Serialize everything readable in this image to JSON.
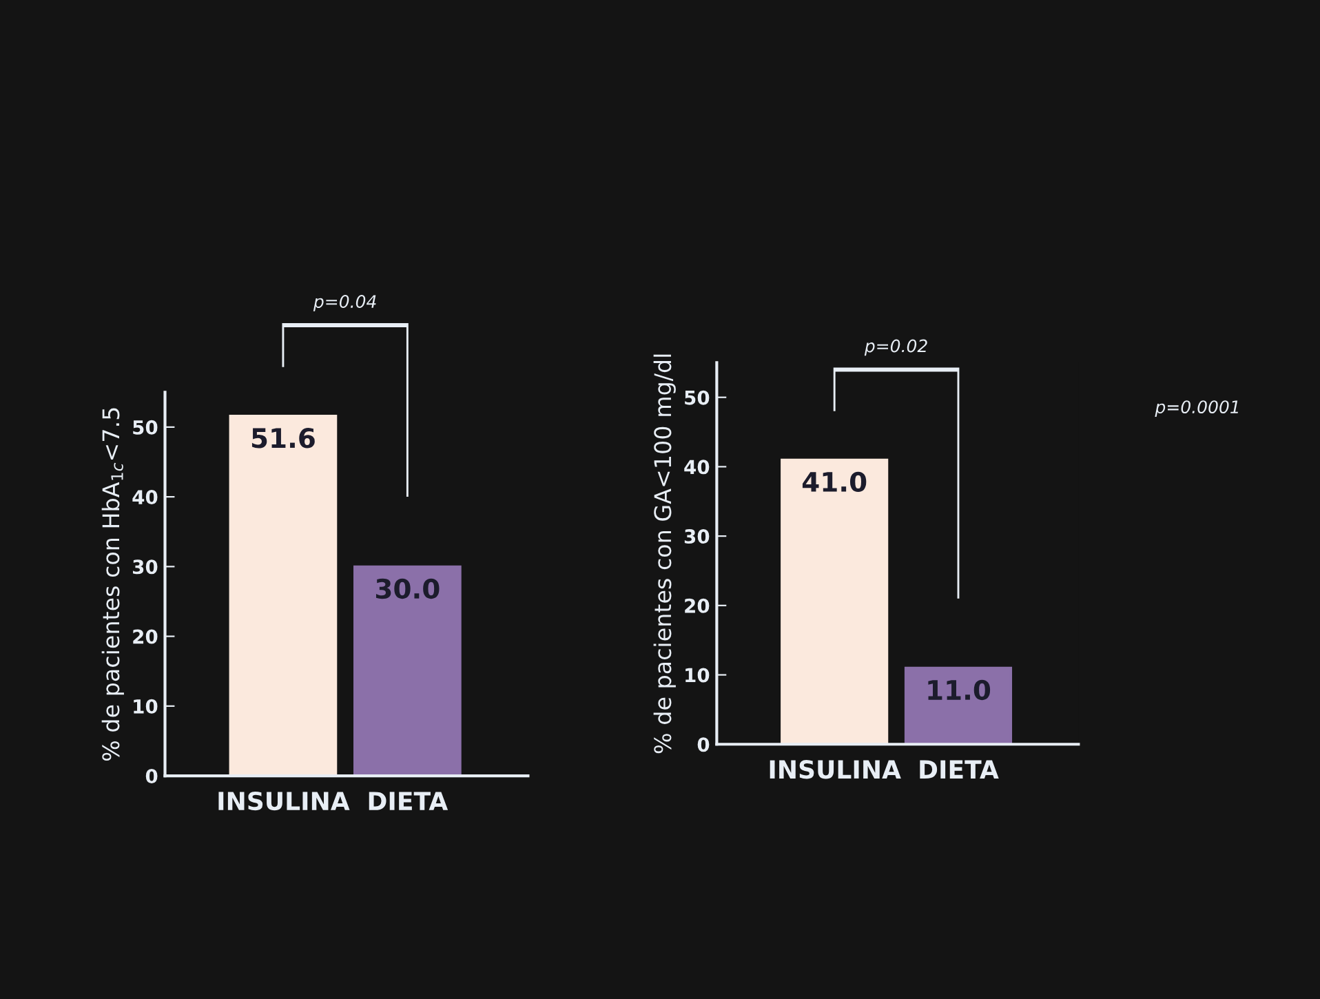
{
  "chart_data": [
    {
      "type": "bar",
      "ylabel": "% de pacientes con HbA$_{1c}$<7.5",
      "categories": [
        "INSULINA",
        "DIETA"
      ],
      "values": [
        51.6,
        30.0
      ],
      "colors": [
        "#fbe9dd",
        "#8b70a9"
      ],
      "value_labels": [
        "51.6",
        "30.0"
      ],
      "ylim": [
        0,
        55
      ],
      "yticks": [
        0,
        10,
        20,
        30,
        40,
        50
      ],
      "grid": false,
      "legend": false,
      "annotations": [
        "p=0.04"
      ]
    },
    {
      "type": "bar",
      "ylabel": "% de pacientes con GA<100 mg/dl",
      "categories": [
        "INSULINA",
        "DIETA"
      ],
      "values": [
        41.0,
        11.0
      ],
      "colors": [
        "#fbe9dd",
        "#8b70a9"
      ],
      "value_labels": [
        "41.0",
        "11.0"
      ],
      "ylim": [
        0,
        55
      ],
      "yticks": [
        0,
        10,
        20,
        30,
        40,
        50
      ],
      "grid": false,
      "legend": false,
      "annotations": [
        "p=0.02",
        "p=0.0001"
      ]
    }
  ]
}
